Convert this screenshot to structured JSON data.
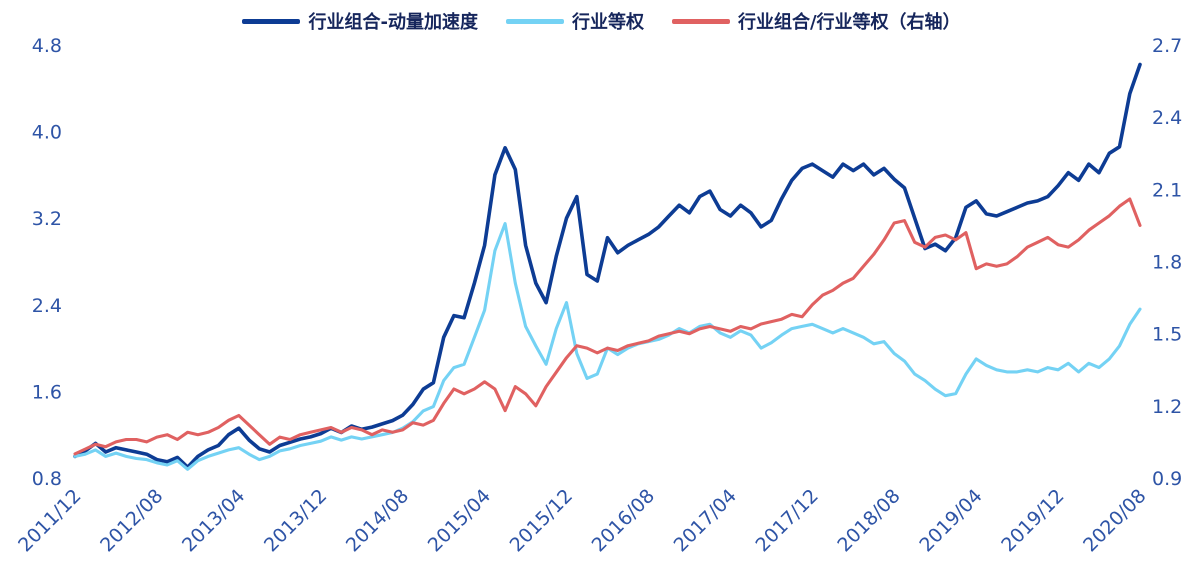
{
  "colors": {
    "background": "#ffffff",
    "tick_text": "#2e54a6",
    "legend_text": "#16265c"
  },
  "chart_data": {
    "type": "line",
    "title": "",
    "xlabel": "",
    "ylabel_left": "",
    "ylabel_right": "",
    "grid": false,
    "legend_position": "top-center",
    "x_tick_labels": [
      "2011/12",
      "2012/08",
      "2013/04",
      "2013/12",
      "2014/08",
      "2015/04",
      "2015/12",
      "2016/08",
      "2017/04",
      "2017/12",
      "2018/08",
      "2019/04",
      "2019/12",
      "2020/08"
    ],
    "x_tick_indices": [
      0,
      8,
      16,
      24,
      32,
      40,
      48,
      56,
      64,
      72,
      80,
      88,
      96,
      104
    ],
    "left_axis": {
      "min": 0.8,
      "max": 4.8,
      "ticks": [
        0.8,
        1.6,
        2.4,
        3.2,
        4.0,
        4.8
      ]
    },
    "right_axis": {
      "min": 0.9,
      "max": 2.7,
      "ticks": [
        0.9,
        1.2,
        1.5,
        1.8,
        2.1,
        2.4,
        2.7
      ]
    },
    "series": [
      {
        "name": "行业组合-动量加速度",
        "axis": "left",
        "color": "#0d3c94",
        "values": [
          1.0,
          1.05,
          1.12,
          1.04,
          1.08,
          1.06,
          1.04,
          1.02,
          0.97,
          0.95,
          0.99,
          0.9,
          1.0,
          1.06,
          1.1,
          1.2,
          1.26,
          1.15,
          1.07,
          1.04,
          1.1,
          1.13,
          1.16,
          1.18,
          1.21,
          1.26,
          1.22,
          1.28,
          1.25,
          1.27,
          1.3,
          1.33,
          1.38,
          1.48,
          1.62,
          1.68,
          2.1,
          2.3,
          2.28,
          2.6,
          2.95,
          3.6,
          3.85,
          3.65,
          2.95,
          2.6,
          2.42,
          2.85,
          3.2,
          3.4,
          2.68,
          2.62,
          3.02,
          2.88,
          2.95,
          3.0,
          3.05,
          3.12,
          3.22,
          3.32,
          3.25,
          3.4,
          3.45,
          3.28,
          3.22,
          3.32,
          3.25,
          3.12,
          3.18,
          3.38,
          3.55,
          3.66,
          3.7,
          3.64,
          3.58,
          3.7,
          3.64,
          3.7,
          3.6,
          3.66,
          3.56,
          3.48,
          3.2,
          2.92,
          2.96,
          2.9,
          3.02,
          3.3,
          3.36,
          3.24,
          3.22,
          3.26,
          3.3,
          3.34,
          3.36,
          3.4,
          3.5,
          3.62,
          3.55,
          3.7,
          3.62,
          3.8,
          3.86,
          4.35,
          4.62
        ]
      },
      {
        "name": "行业等权",
        "axis": "left",
        "color": "#74d2f4",
        "values": [
          1.0,
          1.02,
          1.06,
          1.0,
          1.03,
          1.0,
          0.98,
          0.97,
          0.94,
          0.92,
          0.96,
          0.88,
          0.96,
          1.0,
          1.03,
          1.06,
          1.08,
          1.02,
          0.97,
          1.0,
          1.05,
          1.07,
          1.1,
          1.12,
          1.14,
          1.18,
          1.15,
          1.18,
          1.16,
          1.18,
          1.2,
          1.22,
          1.26,
          1.32,
          1.42,
          1.46,
          1.7,
          1.82,
          1.85,
          2.1,
          2.35,
          2.9,
          3.15,
          2.6,
          2.2,
          2.02,
          1.85,
          2.18,
          2.42,
          1.95,
          1.72,
          1.76,
          2.0,
          1.94,
          2.0,
          2.04,
          2.06,
          2.08,
          2.12,
          2.18,
          2.14,
          2.2,
          2.22,
          2.14,
          2.1,
          2.16,
          2.12,
          2.0,
          2.05,
          2.12,
          2.18,
          2.2,
          2.22,
          2.18,
          2.14,
          2.18,
          2.14,
          2.1,
          2.04,
          2.06,
          1.95,
          1.88,
          1.76,
          1.7,
          1.62,
          1.56,
          1.58,
          1.76,
          1.9,
          1.84,
          1.8,
          1.78,
          1.78,
          1.8,
          1.78,
          1.82,
          1.8,
          1.86,
          1.78,
          1.86,
          1.82,
          1.9,
          2.02,
          2.22,
          2.36
        ]
      },
      {
        "name": "行业组合/行业等权（右轴）",
        "axis": "right",
        "color": "#e06161",
        "values": [
          1.0,
          1.02,
          1.04,
          1.03,
          1.05,
          1.06,
          1.06,
          1.05,
          1.07,
          1.08,
          1.06,
          1.09,
          1.08,
          1.09,
          1.11,
          1.14,
          1.16,
          1.12,
          1.08,
          1.04,
          1.07,
          1.06,
          1.08,
          1.09,
          1.1,
          1.11,
          1.09,
          1.11,
          1.1,
          1.08,
          1.1,
          1.09,
          1.1,
          1.13,
          1.12,
          1.14,
          1.21,
          1.27,
          1.25,
          1.27,
          1.3,
          1.27,
          1.18,
          1.28,
          1.25,
          1.2,
          1.28,
          1.34,
          1.4,
          1.45,
          1.44,
          1.42,
          1.44,
          1.43,
          1.45,
          1.46,
          1.47,
          1.49,
          1.5,
          1.51,
          1.5,
          1.52,
          1.53,
          1.52,
          1.51,
          1.53,
          1.52,
          1.54,
          1.55,
          1.56,
          1.58,
          1.57,
          1.62,
          1.66,
          1.68,
          1.71,
          1.73,
          1.78,
          1.83,
          1.89,
          1.96,
          1.97,
          1.88,
          1.86,
          1.9,
          1.91,
          1.89,
          1.92,
          1.77,
          1.79,
          1.78,
          1.79,
          1.82,
          1.86,
          1.88,
          1.9,
          1.87,
          1.86,
          1.89,
          1.93,
          1.96,
          1.99,
          2.03,
          2.06,
          1.95
        ]
      }
    ]
  }
}
